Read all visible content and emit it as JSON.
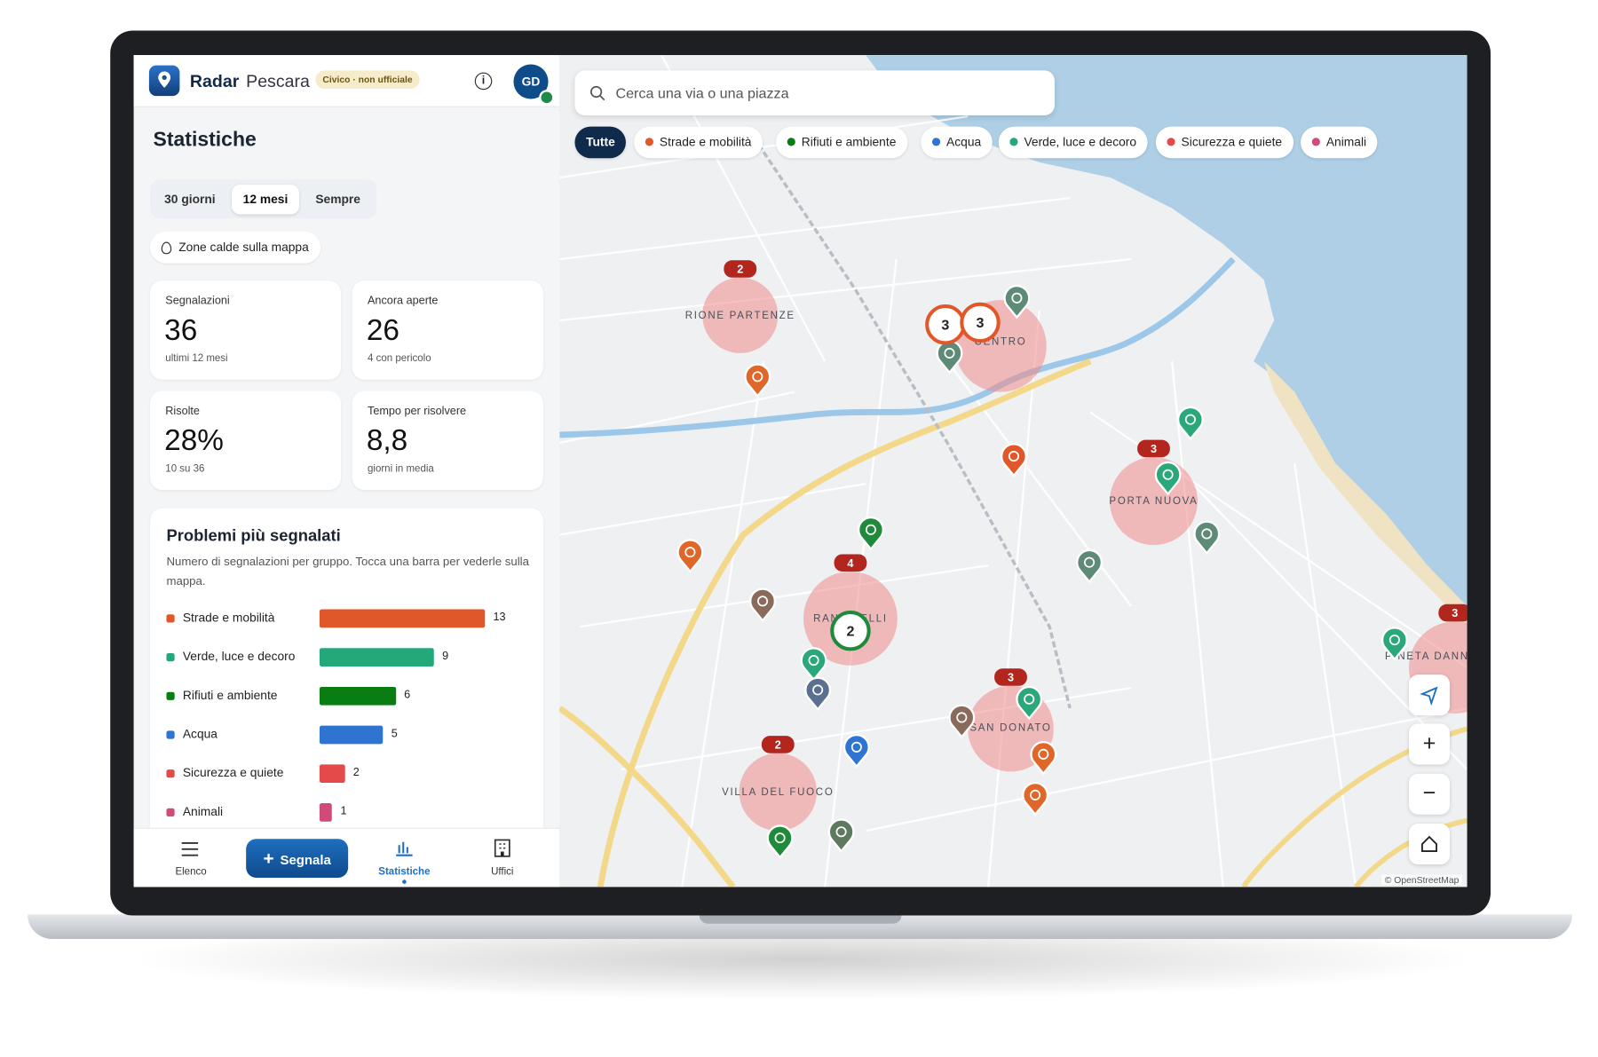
{
  "header": {
    "brand": "Radar",
    "city": "Pescara",
    "badge": "Civico · non ufficiale",
    "avatar": "GD"
  },
  "panel": {
    "title": "Statistiche",
    "periods": [
      "30 giorni",
      "12 mesi",
      "Sempre"
    ],
    "heatmap_button": "Zone calde sulla mappa",
    "cards": [
      {
        "label": "Segnalazioni",
        "value": 36,
        "note": "ultimi 12 mesi"
      },
      {
        "label": "Ancora aperte",
        "value": 26,
        "note": "4 con pericolo"
      },
      {
        "label": "Risolte",
        "value": "28%",
        "note": "10 su 36"
      },
      {
        "label": "Tempo per risolvere",
        "value": "8,8",
        "note": "giorni in media"
      }
    ]
  },
  "chart_data": {
    "type": "bar",
    "title": "Problemi più segnalati",
    "subtitle": "Numero di segnalazioni per gruppo. Tocca una barra per vederle sulla mappa.",
    "categories": [
      "Strade e mobilità",
      "Verde, luce e decoro",
      "Rifiuti e ambiente",
      "Acqua",
      "Sicurezza e quiete",
      "Animali"
    ],
    "values": [
      13,
      9,
      6,
      5,
      2,
      1
    ],
    "colors": [
      "#e0582a",
      "#24a87a",
      "#0a7d12",
      "#2f74d0",
      "#e34a4a",
      "#d04a7a"
    ]
  },
  "nav": [
    "Elenco",
    "Segnala",
    "Statistiche",
    "Uffici"
  ],
  "map": {
    "search_placeholder": "Cerca una via o una piazza",
    "filters": [
      {
        "name": "Tutte"
      },
      {
        "name": "Strade e mobilità",
        "color": "#e0582a"
      },
      {
        "name": "Rifiuti e ambiente",
        "color": "#0a7d12"
      },
      {
        "name": "Acqua",
        "color": "#2f74d0"
      },
      {
        "name": "Verde, luce e decoro",
        "color": "#24a87a"
      },
      {
        "name": "Sicurezza e quiete",
        "color": "#e34a4a"
      },
      {
        "name": "Animali",
        "color": "#d04a7a"
      }
    ],
    "zones": [
      {
        "label": "RIONE PARTENZE",
        "count": 2
      },
      {
        "label": "CENTRO"
      },
      {
        "label": "PORTA NUOVA",
        "count": 3
      },
      {
        "label": "RANCITELLI",
        "count": 4
      },
      {
        "label": "SAN DONATO",
        "count": 3
      },
      {
        "label": "VILLA DEL FUOCO",
        "count": 2
      },
      {
        "label": "PINETA DANNUNZIANA",
        "count": 3
      }
    ],
    "clusters": [
      3,
      3,
      2
    ],
    "attribution": "© OpenStreetMap"
  }
}
